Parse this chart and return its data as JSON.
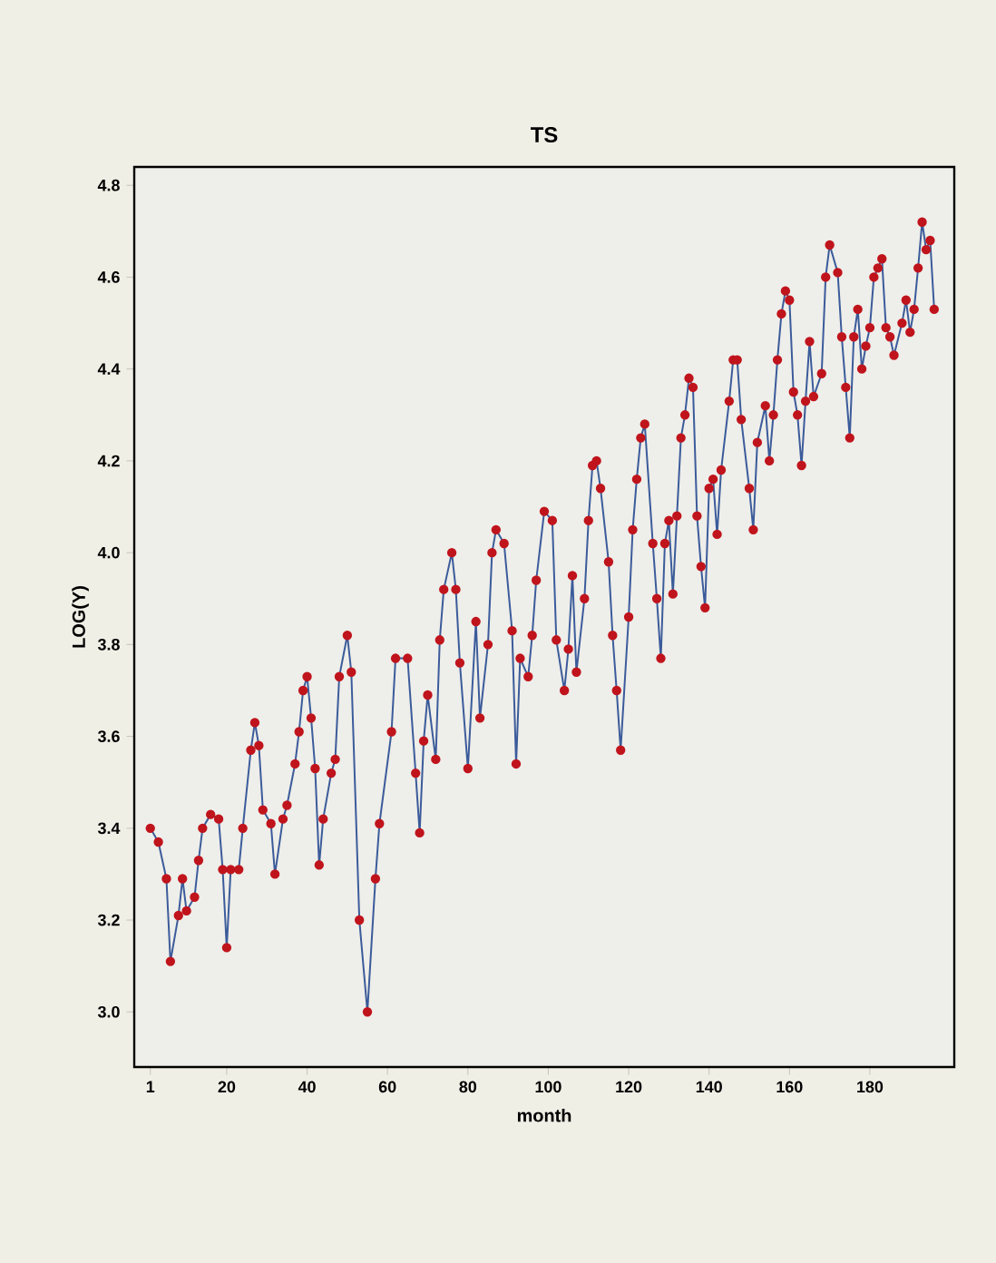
{
  "chart_data": {
    "type": "line",
    "title": "TS",
    "xlabel": "month",
    "ylabel": "LOG(Y)",
    "xlim": [
      -3,
      201
    ],
    "ylim": [
      2.88,
      4.84
    ],
    "xticks": [
      1,
      20,
      40,
      60,
      80,
      100,
      120,
      140,
      160,
      180
    ],
    "yticks": [
      {
        "value": 3.0,
        "label": "3.0"
      },
      3.2,
      3.4,
      3.6,
      3.8,
      {
        "value": 4.0,
        "label": "4.0"
      },
      4.2,
      4.4,
      4.6,
      4.8
    ],
    "marker": "circle",
    "line_style": "solid",
    "grid": false,
    "series": [
      {
        "color": "#c0141c",
        "x": [
          1,
          3,
          5,
          6,
          8,
          9,
          10,
          12,
          13,
          14,
          16,
          18,
          19,
          20,
          21,
          23,
          24,
          26,
          27,
          28,
          29,
          31,
          32,
          34,
          35,
          37,
          38,
          39,
          40,
          41,
          42,
          43,
          44,
          46,
          47,
          48,
          50,
          51,
          53,
          55,
          57,
          58,
          61,
          62,
          65,
          67,
          68,
          69,
          70,
          72,
          73,
          74,
          76,
          77,
          78,
          80,
          82,
          83,
          85,
          86,
          87,
          89,
          91,
          92,
          93,
          95,
          96,
          97,
          99,
          101,
          102,
          104,
          105,
          106,
          107,
          109,
          110,
          111,
          112,
          113,
          115,
          116,
          117,
          118,
          120,
          121,
          122,
          123,
          124,
          126,
          127,
          128,
          129,
          130,
          131,
          132,
          133,
          134,
          135,
          136,
          137,
          138,
          139,
          140,
          141,
          142,
          143,
          145,
          146,
          147,
          148,
          150,
          151,
          152,
          154,
          155,
          156,
          157,
          158,
          159,
          160,
          161,
          162,
          163,
          164,
          165,
          166,
          168,
          169,
          170,
          172,
          173,
          174,
          175,
          176,
          177,
          178,
          179,
          180,
          181,
          182,
          183,
          184,
          185,
          186,
          188,
          189,
          190,
          191,
          192,
          193,
          194,
          195,
          196
        ],
        "values": [
          3.4,
          3.37,
          3.29,
          3.11,
          3.21,
          3.29,
          3.22,
          3.25,
          3.33,
          3.4,
          3.43,
          3.42,
          3.31,
          3.14,
          3.31,
          3.31,
          3.4,
          3.57,
          3.63,
          3.58,
          3.44,
          3.41,
          3.3,
          3.42,
          3.45,
          3.54,
          3.61,
          3.7,
          3.73,
          3.64,
          3.53,
          3.32,
          3.42,
          3.52,
          3.55,
          3.73,
          3.82,
          3.74,
          3.2,
          3.0,
          3.29,
          3.41,
          3.61,
          3.77,
          3.77,
          3.52,
          3.39,
          3.59,
          3.69,
          3.55,
          3.81,
          3.92,
          4.0,
          3.92,
          3.76,
          3.53,
          3.85,
          3.64,
          3.8,
          4.0,
          4.05,
          4.02,
          3.83,
          3.54,
          3.77,
          3.73,
          3.82,
          3.94,
          4.09,
          4.07,
          3.81,
          3.7,
          3.79,
          3.95,
          3.74,
          3.9,
          4.07,
          4.19,
          4.2,
          4.14,
          3.98,
          3.82,
          3.7,
          3.57,
          3.86,
          4.05,
          4.16,
          4.25,
          4.28,
          4.02,
          3.9,
          3.77,
          4.02,
          4.07,
          3.91,
          4.08,
          4.25,
          4.3,
          4.38,
          4.36,
          4.08,
          3.97,
          3.88,
          4.14,
          4.16,
          4.04,
          4.18,
          4.33,
          4.42,
          4.42,
          4.29,
          4.14,
          4.05,
          4.24,
          4.32,
          4.2,
          4.3,
          4.42,
          4.52,
          4.57,
          4.55,
          4.35,
          4.3,
          4.19,
          4.33,
          4.46,
          4.34,
          4.39,
          4.6,
          4.67,
          4.61,
          4.47,
          4.36,
          4.25,
          4.47,
          4.53,
          4.4,
          4.45,
          4.49,
          4.6,
          4.62,
          4.64,
          4.49,
          4.47,
          4.43,
          4.5,
          4.55,
          4.48,
          4.53,
          4.62,
          4.72,
          4.66,
          4.68,
          4.53
        ]
      }
    ]
  }
}
